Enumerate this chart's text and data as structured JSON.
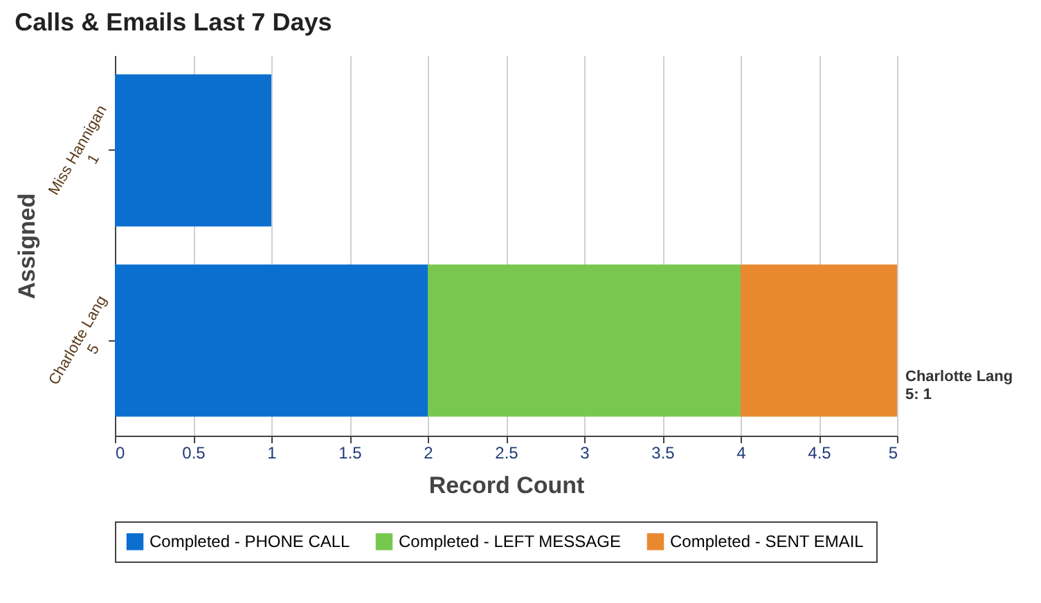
{
  "chart_data": {
    "type": "bar",
    "orientation": "horizontal",
    "stacked": true,
    "title": "Calls & Emails Last 7 Days",
    "xlabel": "Record Count",
    "ylabel": "Assigned",
    "categories": [
      "Miss Hannigan\n1",
      "Charlotte Lang\n5"
    ],
    "series": [
      {
        "name": "Completed - PHONE CALL",
        "color": "#0b6fd0",
        "values": [
          1,
          2
        ]
      },
      {
        "name": "Completed - LEFT MESSAGE",
        "color": "#78c850",
        "values": [
          null,
          2
        ]
      },
      {
        "name": "Completed - SENT EMAIL",
        "color": "#e8892f",
        "values": [
          null,
          1
        ]
      }
    ],
    "xlim": [
      0,
      5
    ],
    "xticks": [
      {
        "value": 0,
        "label": "0"
      },
      0.5,
      {
        "value": 1,
        "label": "1"
      },
      1.5,
      {
        "value": 2,
        "label": "2"
      },
      2.5,
      {
        "value": 3,
        "label": "3"
      },
      3.5,
      {
        "value": 4,
        "label": "4"
      },
      4.5,
      {
        "value": 5,
        "label": "5"
      }
    ],
    "grid": "x",
    "legend": "bottom",
    "annotations": [
      {
        "text": "Charlotte Lang\n5: 1",
        "x": 5,
        "y": "Charlotte Lang\n5"
      }
    ]
  }
}
